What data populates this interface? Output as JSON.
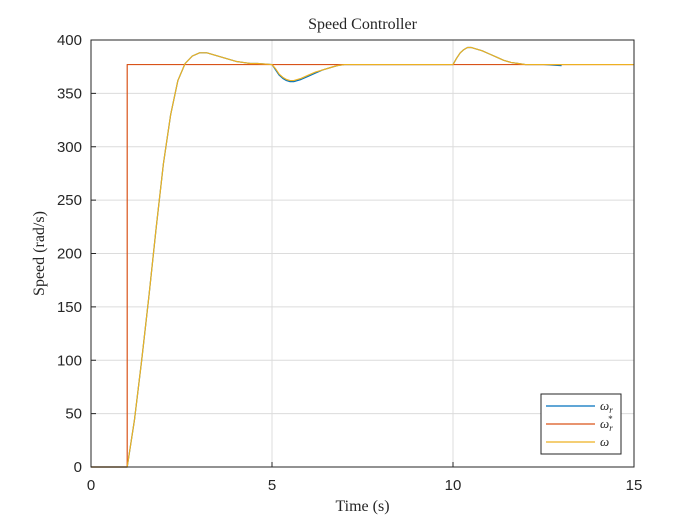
{
  "chart_data": {
    "type": "line",
    "title": "Speed Controller",
    "xlabel": "Time (s)",
    "ylabel": "Speed (rad/s)",
    "xlim": [
      0,
      15
    ],
    "ylim": [
      0,
      400
    ],
    "xticks": [
      0,
      5,
      10,
      15
    ],
    "yticks": [
      0,
      50,
      100,
      150,
      200,
      250,
      300,
      350,
      400
    ],
    "grid": true,
    "legend_position": "bottom-right",
    "series": [
      {
        "name": "ω_r",
        "color": "#0072BD",
        "x": [
          0,
          1,
          1.2,
          1.4,
          1.6,
          1.8,
          2.0,
          2.2,
          2.4,
          2.6,
          2.8,
          3.0,
          3.2,
          3.4,
          3.6,
          3.8,
          4.0,
          4.2,
          4.4,
          4.6,
          5.0,
          5.1,
          5.2,
          5.3,
          5.4,
          5.5,
          5.6,
          5.8,
          6.0,
          6.2,
          6.4,
          6.6,
          6.8,
          7.0,
          7.5,
          8.0,
          9.0,
          10.0,
          10.1,
          10.2,
          10.3,
          10.4,
          10.5,
          10.6,
          10.8,
          11.0,
          11.2,
          11.4,
          11.6,
          11.8,
          12.0,
          12.5,
          13.0
        ],
        "y": [
          0,
          0,
          44,
          100,
          160,
          224,
          284,
          330,
          362,
          378,
          385,
          388,
          388,
          386,
          384,
          382,
          380,
          379,
          378,
          378,
          377,
          372,
          367,
          364,
          362,
          361,
          361,
          363,
          366,
          369,
          372,
          374,
          376,
          377,
          377,
          377,
          377,
          377,
          383,
          388,
          391,
          393,
          393,
          392,
          390,
          387,
          384,
          381,
          379,
          378,
          377,
          377,
          376
        ]
      },
      {
        "name": "ω_r^*",
        "color": "#D95319",
        "x": [
          0,
          1,
          1,
          15
        ],
        "y": [
          0,
          0,
          377,
          377
        ]
      },
      {
        "name": "ω",
        "color": "#EDB120",
        "x": [
          0,
          1,
          1.2,
          1.4,
          1.6,
          1.8,
          2.0,
          2.2,
          2.4,
          2.6,
          2.8,
          3.0,
          3.2,
          3.4,
          3.6,
          3.8,
          4.0,
          4.2,
          4.4,
          4.6,
          5.0,
          5.1,
          5.2,
          5.3,
          5.4,
          5.5,
          5.6,
          5.8,
          6.0,
          6.2,
          6.4,
          6.6,
          6.8,
          7.0,
          7.5,
          8.0,
          9.0,
          10.0,
          10.1,
          10.2,
          10.3,
          10.4,
          10.5,
          10.6,
          10.8,
          11.0,
          11.2,
          11.4,
          11.6,
          11.8,
          12.0,
          12.5,
          13.0,
          13.5,
          14.0,
          15.0
        ],
        "y": [
          0,
          0,
          44,
          100,
          160,
          224,
          284,
          330,
          362,
          378,
          385,
          388,
          388,
          386,
          384,
          382,
          380,
          379,
          378,
          378,
          377,
          373,
          368,
          365,
          363,
          362,
          362,
          364,
          367,
          370,
          372,
          374,
          376,
          377,
          377,
          377,
          377,
          377,
          383,
          388,
          391,
          393,
          393,
          392,
          390,
          387,
          384,
          381,
          379,
          378,
          377,
          377,
          377,
          377,
          377,
          377
        ]
      }
    ]
  }
}
